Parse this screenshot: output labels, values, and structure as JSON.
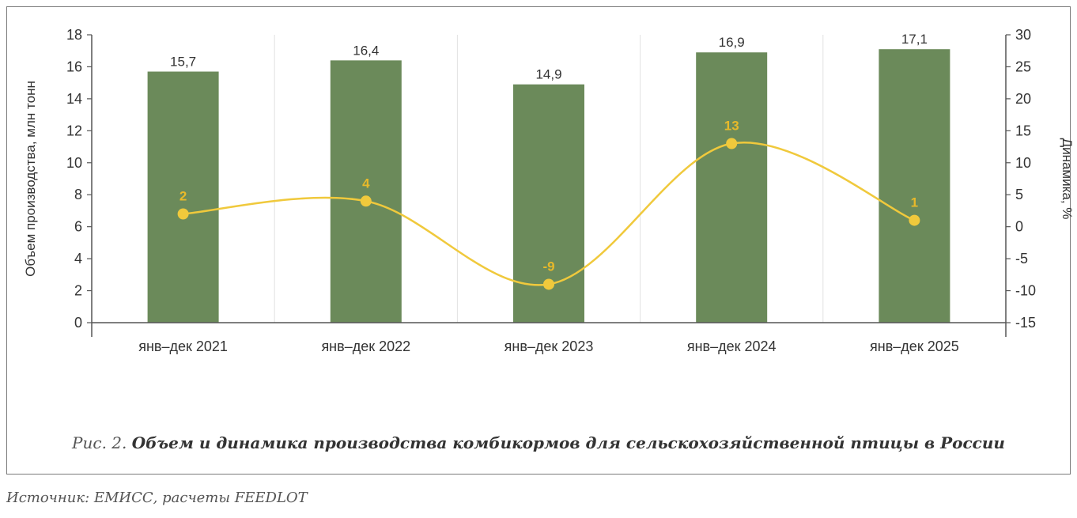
{
  "chart_data": {
    "type": "bar",
    "categories": [
      "янв–дек 2021",
      "янв–дек 2022",
      "янв–дек 2023",
      "янв–дек 2024",
      "янв–дек 2025"
    ],
    "series": [
      {
        "type": "bar",
        "axis": "left",
        "values": [
          15.7,
          16.4,
          14.9,
          16.9,
          17.1
        ],
        "labels": [
          "15,7",
          "16,4",
          "14,9",
          "16,9",
          "17,1"
        ],
        "color": "#6b8a5a"
      },
      {
        "type": "line",
        "axis": "right",
        "values": [
          2,
          4,
          -9,
          13,
          1
        ],
        "labels": [
          "2",
          "4",
          "-9",
          "13",
          "1"
        ],
        "color": "#f0c93c",
        "smooth": true
      }
    ],
    "ylabel": "Объем производства, млн тонн",
    "y2label": "Динамика, %",
    "ylim": [
      0,
      18
    ],
    "y2lim": [
      -15,
      30
    ],
    "yticks": [
      "0",
      "2",
      "4",
      "6",
      "8",
      "10",
      "12",
      "14",
      "16",
      "18"
    ],
    "y2ticks": [
      "-15",
      "-10",
      "-5",
      "0",
      "5",
      "10",
      "15",
      "20",
      "25",
      "30"
    ],
    "grid": "vertical"
  },
  "caption": {
    "prefix": "Рис. 2.",
    "title": "Объем и динамика производства комбикормов для сельскохозяйственной птицы в России"
  },
  "source": "Источник: ЕМИСС, расчеты FEEDLOT"
}
